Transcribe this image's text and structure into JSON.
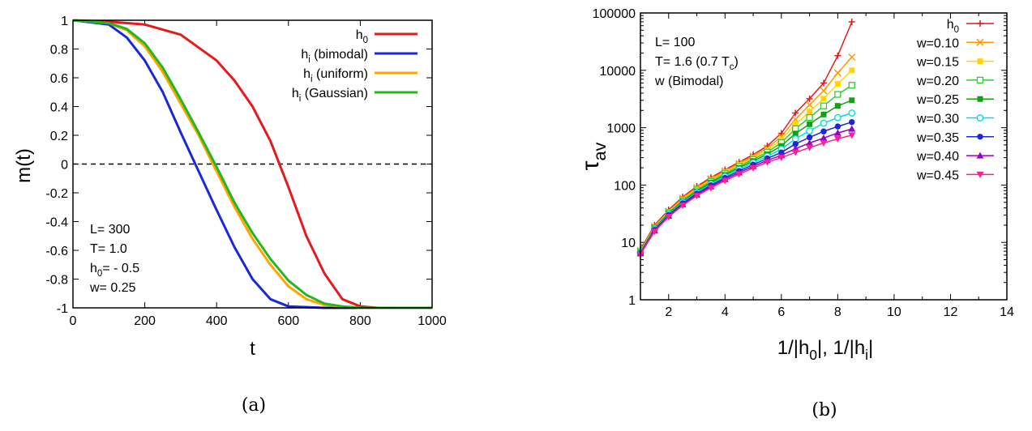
{
  "chart_data": [
    {
      "panel": "(a)",
      "type": "line",
      "xlabel": "t",
      "ylabel": "m(t)",
      "xlim": [
        0,
        1000
      ],
      "ylim": [
        -1,
        1
      ],
      "x_ticks": [
        "0",
        "200",
        "400",
        "600",
        "800",
        "1000"
      ],
      "y_ticks": [
        "1",
        "0.8",
        "0.6",
        "0.4",
        "0.2",
        "0",
        "-0.2",
        "-0.4",
        "-0.6",
        "-0.8",
        "-1"
      ],
      "legend_position": "top-right",
      "reference_line": {
        "y": 0,
        "style": "dashed"
      },
      "annotation": [
        "L= 300",
        "T= 1.0",
        "h0= - 0.5",
        "w= 0.25"
      ],
      "series": [
        {
          "name": "h0",
          "color": "#e41a1c",
          "x": [
            0,
            100,
            200,
            300,
            400,
            450,
            500,
            550,
            600,
            650,
            700,
            750,
            800,
            850,
            1000
          ],
          "y": [
            1,
            0.99,
            0.97,
            0.9,
            0.72,
            0.58,
            0.4,
            0.16,
            -0.16,
            -0.5,
            -0.76,
            -0.94,
            -0.99,
            -1,
            -1
          ]
        },
        {
          "name": "hi (bimodal)",
          "color": "#1a28d8",
          "x": [
            0,
            100,
            150,
            200,
            250,
            300,
            350,
            400,
            450,
            500,
            550,
            600,
            700,
            1000
          ],
          "y": [
            1,
            0.97,
            0.88,
            0.72,
            0.5,
            0.22,
            -0.05,
            -0.32,
            -0.58,
            -0.8,
            -0.94,
            -0.99,
            -1,
            -1
          ]
        },
        {
          "name": "hi (uniform)",
          "color": "#ffa500",
          "x": [
            0,
            100,
            150,
            200,
            250,
            300,
            350,
            400,
            450,
            500,
            550,
            600,
            650,
            700,
            750,
            800,
            1000
          ],
          "y": [
            1,
            0.98,
            0.93,
            0.82,
            0.64,
            0.42,
            0.2,
            -0.05,
            -0.3,
            -0.52,
            -0.7,
            -0.85,
            -0.94,
            -0.98,
            -0.99,
            -1,
            -1
          ]
        },
        {
          "name": "hi (Gaussian)",
          "color": "#22b822",
          "x": [
            0,
            100,
            150,
            200,
            250,
            300,
            350,
            400,
            450,
            500,
            550,
            600,
            650,
            700,
            750,
            800,
            1000
          ],
          "y": [
            1,
            0.98,
            0.94,
            0.84,
            0.67,
            0.45,
            0.22,
            -0.02,
            -0.27,
            -0.48,
            -0.66,
            -0.81,
            -0.91,
            -0.97,
            -0.99,
            -1,
            -1
          ]
        }
      ]
    },
    {
      "panel": "(b)",
      "type": "line",
      "xlabel": "1/|h0|, 1/|hi|",
      "ylabel": "τav",
      "xlim": [
        1,
        14
      ],
      "ylim": [
        1,
        100000
      ],
      "yscale": "log",
      "x_ticks": [
        "2",
        "4",
        "6",
        "8",
        "10",
        "12",
        "14"
      ],
      "y_ticks": [
        "1",
        "10",
        "100",
        "1000",
        "10000",
        "100000"
      ],
      "legend_position": "top-right",
      "annotation": [
        "L= 100",
        "T= 1.6 (0.7 Tc)",
        "w (Bimodal)"
      ],
      "x": [
        1,
        1.5,
        2,
        2.5,
        3,
        3.5,
        4,
        4.5,
        5,
        5.5,
        6,
        6.5,
        7,
        7.5,
        8,
        8.5
      ],
      "series": [
        {
          "name": "h0",
          "color": "#e41a1c",
          "marker": "plus",
          "y": [
            7.5,
            20,
            37,
            62,
            95,
            135,
            185,
            250,
            340,
            480,
            800,
            1800,
            3200,
            6000,
            18000,
            70000
          ]
        },
        {
          "name": "w=0.10",
          "color": "#ff9900",
          "marker": "x",
          "y": [
            7.2,
            19,
            35,
            59,
            90,
            128,
            175,
            237,
            318,
            440,
            700,
            1400,
            2500,
            4400,
            9000,
            17000
          ]
        },
        {
          "name": "w=0.15",
          "color": "#ffd700",
          "marker": "filled-square",
          "y": [
            7.0,
            18.5,
            34,
            56,
            86,
            122,
            166,
            225,
            298,
            405,
            620,
            1150,
            1900,
            3200,
            5800,
            10000
          ]
        },
        {
          "name": "w=0.20",
          "color": "#33cc33",
          "marker": "open-square",
          "y": [
            6.9,
            18,
            33,
            54,
            82,
            116,
            158,
            213,
            280,
            375,
            550,
            960,
            1500,
            2400,
            3800,
            5500
          ]
        },
        {
          "name": "w=0.25",
          "color": "#149f14",
          "marker": "filled-square",
          "y": [
            6.7,
            17.5,
            32,
            52,
            78,
            110,
            150,
            200,
            262,
            345,
            480,
            790,
            1150,
            1700,
            2400,
            3000
          ]
        },
        {
          "name": "w=0.30",
          "color": "#00dddd",
          "marker": "open-circle",
          "y": [
            6.6,
            17,
            31,
            50,
            74,
            104,
            141,
            188,
            244,
            318,
            420,
            640,
            880,
            1200,
            1500,
            1800
          ]
        },
        {
          "name": "w=0.35",
          "color": "#1a28d8",
          "marker": "filled-circle",
          "y": [
            6.5,
            16.5,
            30,
            48,
            71,
            99,
            133,
            176,
            227,
            292,
            370,
            520,
            680,
            860,
            1050,
            1250
          ]
        },
        {
          "name": "w=0.40",
          "color": "#9900cc",
          "marker": "filled-triangle-up",
          "y": [
            6.4,
            16,
            29,
            46,
            68,
            94,
            126,
            165,
            212,
            270,
            330,
            430,
            540,
            660,
            810,
            950
          ]
        },
        {
          "name": "w=0.45",
          "color": "#ff1f8f",
          "marker": "filled-triangle-down",
          "y": [
            6.2,
            15.5,
            28,
            44,
            65,
            89,
            119,
            155,
            198,
            250,
            300,
            370,
            450,
            540,
            640,
            740
          ]
        }
      ]
    }
  ]
}
